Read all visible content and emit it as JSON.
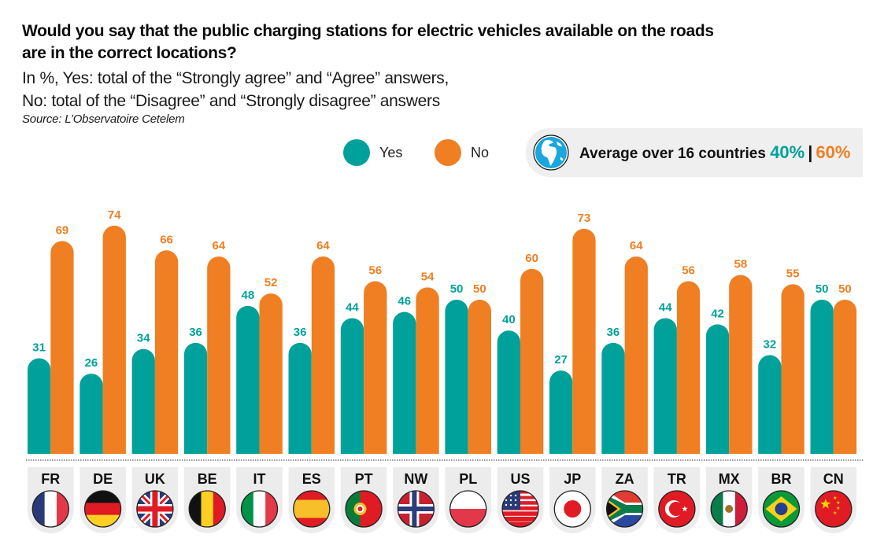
{
  "header": {
    "title": "Would you say that the public charging stations for electric vehicles available on the roads are in the correct locations?",
    "subtitle_line1": "In %, Yes: total of the “Strongly agree” and “Agree” answers,",
    "subtitle_line2": "No: total of the “Disagree” and “Strongly disagree” answers",
    "source": "Source: L’Observatoire Cetelem"
  },
  "legend": {
    "yes_label": "Yes",
    "no_label": "No"
  },
  "average": {
    "icon": "globe-icon",
    "label": "Average over 16 countries",
    "yes_value": "40%",
    "separator": "|",
    "no_value": "60%"
  },
  "colors": {
    "yes": "#00a19a",
    "no": "#ef7f22",
    "tab_bg": "#ececec"
  },
  "chart_data": {
    "type": "bar",
    "title": "Would you say that the public charging stations for electric vehicles available on the roads are in the correct locations?",
    "xlabel": "",
    "ylabel": "%",
    "ylim": [
      0,
      80
    ],
    "grid": false,
    "legend_position": "top-right",
    "categories": [
      "FR",
      "DE",
      "UK",
      "BE",
      "IT",
      "ES",
      "PT",
      "NW",
      "PL",
      "US",
      "JP",
      "ZA",
      "TR",
      "MX",
      "BR",
      "CN"
    ],
    "series": [
      {
        "name": "Yes",
        "values": [
          31,
          26,
          34,
          36,
          48,
          36,
          44,
          46,
          50,
          40,
          27,
          36,
          44,
          42,
          32,
          50
        ]
      },
      {
        "name": "No",
        "values": [
          69,
          74,
          66,
          64,
          52,
          64,
          56,
          54,
          50,
          60,
          73,
          64,
          56,
          58,
          55,
          50
        ]
      }
    ],
    "average": {
      "yes": 40,
      "no": 60,
      "countries": 16
    }
  }
}
